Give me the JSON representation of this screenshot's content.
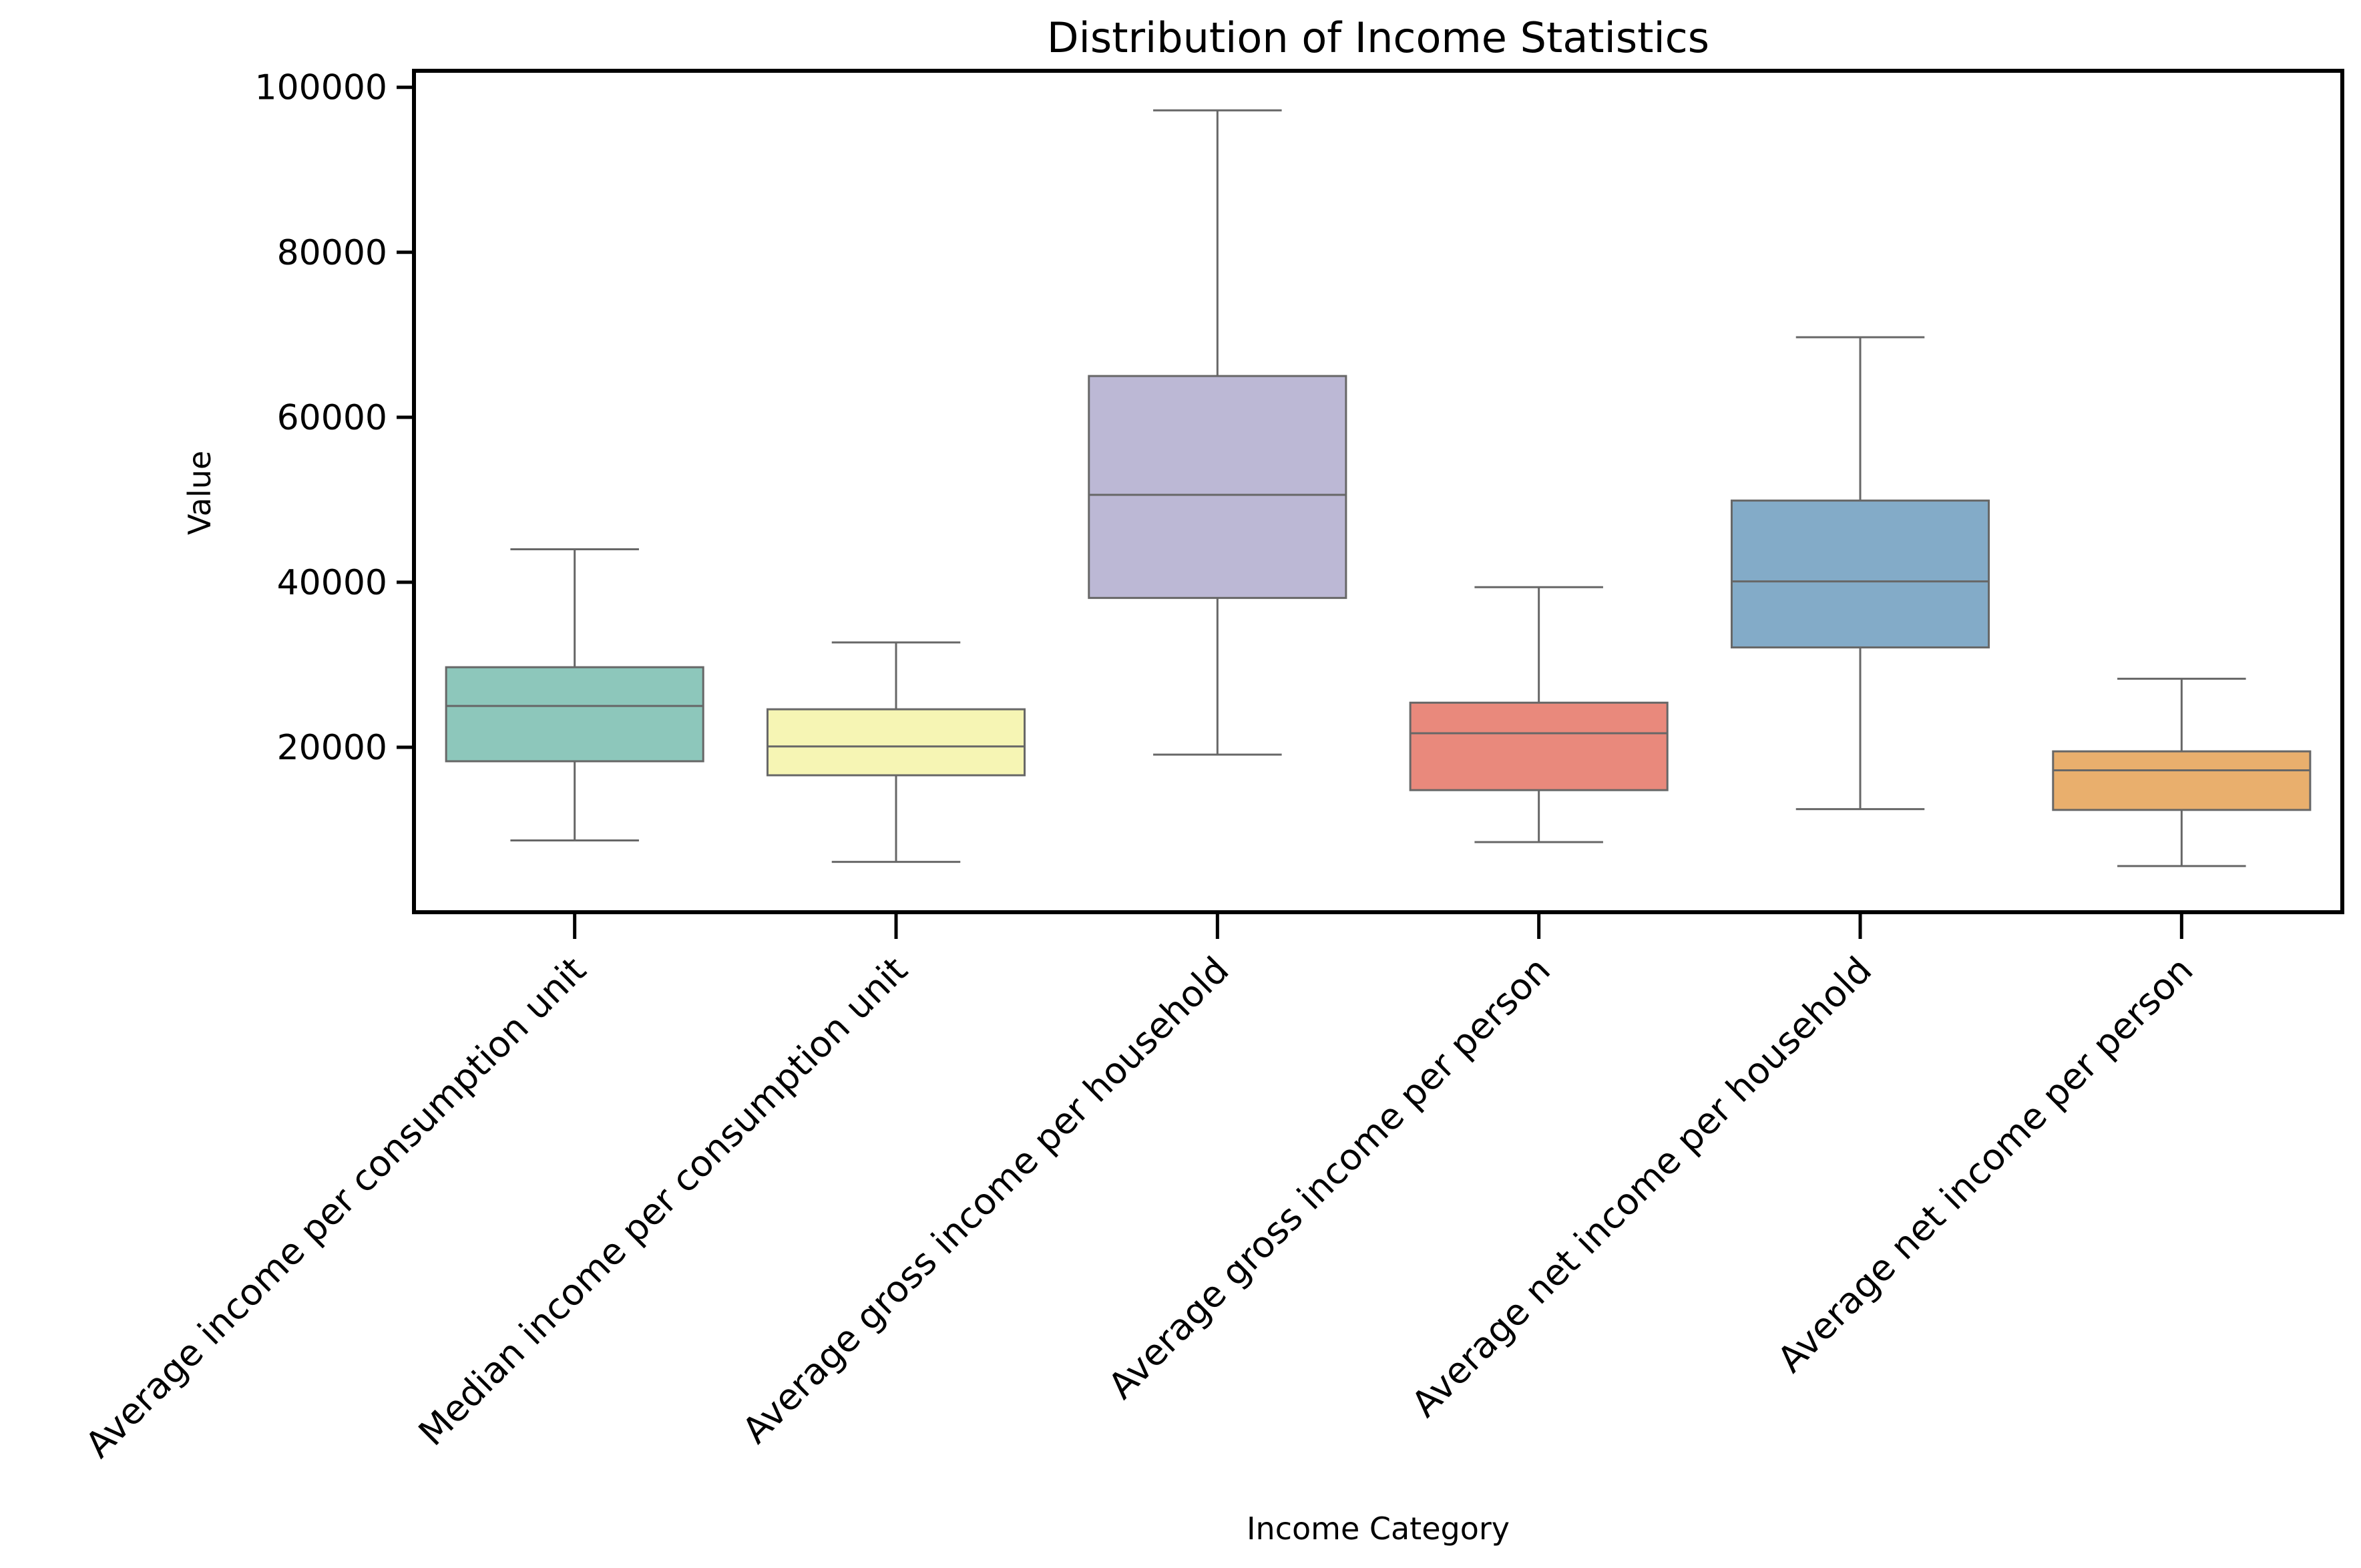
{
  "chart_data": {
    "type": "box",
    "title": "Distribution of Income Statistics",
    "xlabel": "Income Category",
    "ylabel": "Value",
    "ylim": [
      0,
      102000
    ],
    "yticks": [
      20000,
      40000,
      60000,
      80000,
      100000
    ],
    "grid": false,
    "categories": [
      "Average income per consumption unit",
      "Median income per consumption unit",
      "Average gross income per household",
      "Average gross income per person",
      "Average net income per household",
      "Average net income per person"
    ],
    "boxes": [
      {
        "whisker_low": 8700,
        "q1": 18300,
        "median": 25000,
        "q3": 29700,
        "whisker_high": 44000
      },
      {
        "whisker_low": 6100,
        "q1": 16600,
        "median": 20100,
        "q3": 24600,
        "whisker_high": 32700
      },
      {
        "whisker_low": 19100,
        "q1": 38100,
        "median": 50600,
        "q3": 65000,
        "whisker_high": 97200
      },
      {
        "whisker_low": 8500,
        "q1": 14800,
        "median": 21700,
        "q3": 25400,
        "whisker_high": 39400
      },
      {
        "whisker_low": 12500,
        "q1": 32100,
        "median": 40100,
        "q3": 49900,
        "whisker_high": 69700
      },
      {
        "whisker_low": 5600,
        "q1": 12400,
        "median": 17200,
        "q3": 19500,
        "whisker_high": 28300
      }
    ],
    "colors": [
      "#8dc7bb",
      "#f6f5b4",
      "#bcb8d5",
      "#e9897c",
      "#83abc8",
      "#e9af6d"
    ],
    "line_color": "#676767"
  }
}
